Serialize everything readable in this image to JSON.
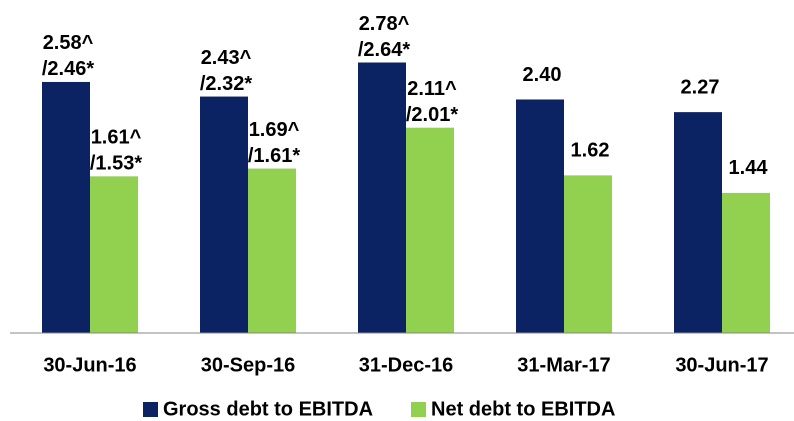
{
  "chart_data": {
    "type": "bar",
    "categories": [
      "30-Jun-16",
      "30-Sep-16",
      "31-Dec-16",
      "31-Mar-17",
      "30-Jun-17"
    ],
    "series": [
      {
        "name": "Gross debt to EBITDA",
        "color": "#0b2263",
        "values": [
          2.58,
          2.43,
          2.78,
          2.4,
          2.27
        ],
        "value_labels": [
          [
            "2.58^",
            "/2.46*"
          ],
          [
            "2.43^",
            "/2.32*"
          ],
          [
            "2.78^",
            "/2.64*"
          ],
          [
            "2.40"
          ],
          [
            "2.27"
          ]
        ]
      },
      {
        "name": "Net debt to EBITDA",
        "color": "#92d050",
        "values": [
          1.61,
          1.69,
          2.11,
          1.62,
          1.44
        ],
        "value_labels": [
          [
            "1.61^",
            "/1.53*"
          ],
          [
            "1.69^",
            "/1.61*"
          ],
          [
            "2.11^",
            "/2.01*"
          ],
          [
            "1.62"
          ],
          [
            "1.44"
          ]
        ]
      }
    ]
  }
}
